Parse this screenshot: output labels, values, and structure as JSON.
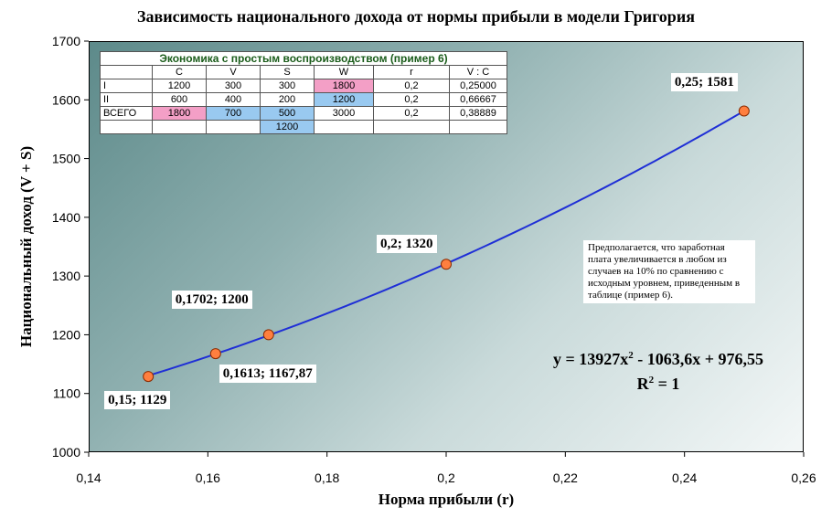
{
  "chart_data": {
    "type": "scatter",
    "title": "Зависимость национального дохода от нормы прибыли в модели Григория",
    "xlabel": "Норма прибыли  (r)",
    "ylabel": "Национальный доход (V + S)",
    "xlim": [
      0.14,
      0.26
    ],
    "ylim": [
      1000,
      1700
    ],
    "x_ticks": [
      "0,14",
      "0,16",
      "0,18",
      "0,2",
      "0,22",
      "0,24",
      "0,26"
    ],
    "y_ticks": [
      "1000",
      "1100",
      "1200",
      "1300",
      "1400",
      "1500",
      "1600",
      "1700"
    ],
    "x": [
      0.15,
      0.1613,
      0.1702,
      0.2,
      0.25
    ],
    "y": [
      1129,
      1167.87,
      1200,
      1320,
      1581
    ],
    "point_labels": [
      "0,15; 1129",
      "0,1613; 1167,87",
      "0,1702; 1200",
      "0,2; 1320",
      "0,25; 1581"
    ],
    "trendline": {
      "type": "polynomial",
      "coefficients": [
        13927,
        -1063.6,
        976.55
      ],
      "equation_prefix": "y = 13927x",
      "equation_suffix": " - 1063,6x + 976,55",
      "r2_prefix": "R",
      "r2_suffix": " = 1"
    },
    "series_color": "#ff7f3f",
    "line_color": "#1f2fd6"
  },
  "table": {
    "caption": "Экономика с простым воспроизводством (пример 6)",
    "headers": [
      "",
      "C",
      "V",
      "S",
      "W",
      "r",
      "V : C"
    ],
    "rows": [
      [
        "I",
        "1200",
        "300",
        "300",
        "1800",
        "0,2",
        "0,25000"
      ],
      [
        "II",
        "600",
        "400",
        "200",
        "1200",
        "0,2",
        "0,66667"
      ],
      [
        "ВСЕГО",
        "1800",
        "700",
        "500",
        "3000",
        "0,2",
        "0,38889"
      ],
      [
        "",
        "",
        "",
        "1200",
        "",
        "",
        ""
      ]
    ]
  },
  "note": "Предполагается, что заработная плата увеличивается в любом из случаев на 10% по сравнению с исходным уровнем, приведенным в таблице (пример 6).",
  "colors": {
    "pink": "#f39fc6",
    "blue": "#99c9f0"
  }
}
